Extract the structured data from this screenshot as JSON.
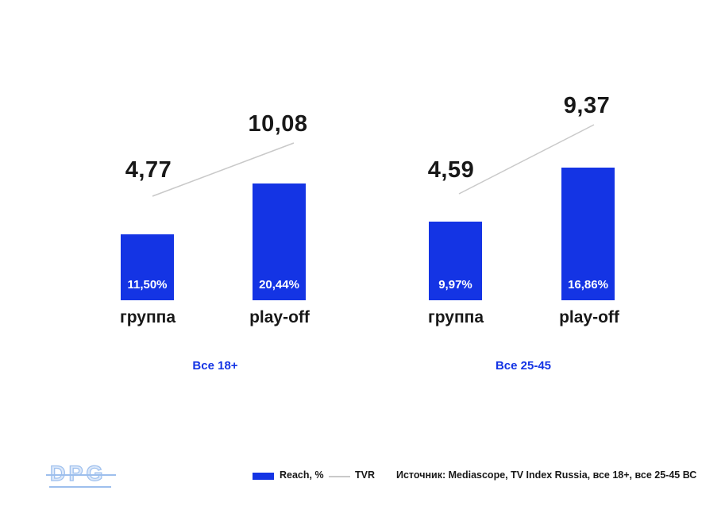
{
  "slide": {
    "background": "#ffffff",
    "logo_text": "DPG",
    "source_note": "Источник: Mediascope, TV Index Russia, все 18+, все 25-45 ВС"
  },
  "legend": {
    "reach_label": "Reach, %",
    "tvr_label": "TVR",
    "reach_swatch_color": "#1434e4",
    "tvr_line_color": "#c9c9c9"
  },
  "colors": {
    "bar_blue": "#1434e4",
    "audience_label_blue": "#1434e4",
    "tvr_line_gray": "#c9c9c9",
    "text_dark": "#181818",
    "logo_light_blue": "#9dbfed"
  },
  "chart_data": [
    {
      "type": "bar",
      "title": "Все 18+",
      "categories": [
        "группа",
        "play-off"
      ],
      "series": [
        {
          "name": "Reach, %",
          "chart_type": "bar",
          "values": [
            11.5,
            20.44
          ],
          "labels": [
            "11,50%",
            "20,44%"
          ],
          "unit": "%"
        },
        {
          "name": "TVR",
          "chart_type": "line",
          "values": [
            4.77,
            10.08
          ],
          "labels": [
            "4,77",
            "10,08"
          ]
        }
      ],
      "grid": false,
      "legend_position": "bottom",
      "value_labels_inside_bars": true
    },
    {
      "type": "bar",
      "title": "Все 25-45",
      "categories": [
        "группа",
        "play-off"
      ],
      "series": [
        {
          "name": "Reach, %",
          "chart_type": "bar",
          "values": [
            9.97,
            16.86
          ],
          "labels": [
            "9,97%",
            "16,86%"
          ],
          "unit": "%"
        },
        {
          "name": "TVR",
          "chart_type": "line",
          "values": [
            4.59,
            9.37
          ],
          "labels": [
            "4,59",
            "9,37"
          ]
        }
      ],
      "grid": false,
      "legend_position": "bottom",
      "value_labels_inside_bars": true
    }
  ]
}
